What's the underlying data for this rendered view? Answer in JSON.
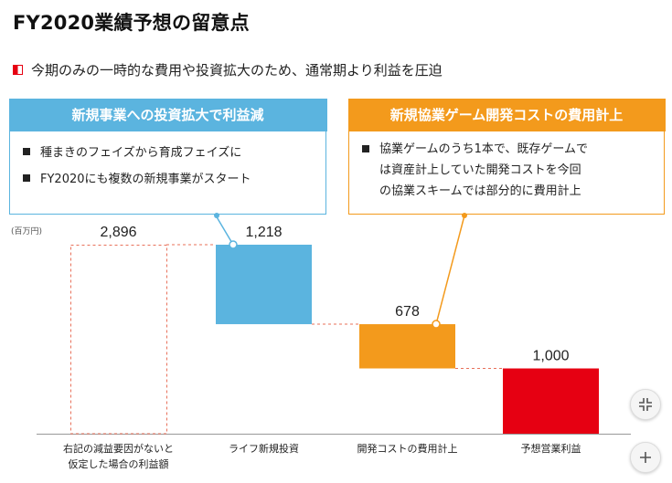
{
  "title": "FY2020業績予想の留意点",
  "subtitle": "今期のみの一時的な費用や投資拡大のため、通常期より利益を圧迫",
  "callouts": {
    "left": {
      "heading": "新規事業への投資拡大で利益減",
      "lines": [
        "種まきのフェイズから育成フェイズに",
        "FY2020にも複数の新規事業がスタート"
      ]
    },
    "right": {
      "heading": "新規協業ゲーム開発コストの費用計上",
      "line1": "協業ゲームのうち1本で、既存ゲームで",
      "line2": "は資産計上していた開発コストを今回",
      "line3": "の協業スキームでは部分的に費用計上"
    }
  },
  "chart_data": {
    "type": "waterfall",
    "unit": "(百万円)",
    "categories": [
      "右記の減益要因がないと\n仮定した場合の利益額",
      "ライフ新規投資",
      "開発コストの費用計上",
      "予想営業利益"
    ],
    "steps": [
      {
        "label": "2,896",
        "value": 2896,
        "kind": "total",
        "style": "dashed"
      },
      {
        "label": "1,218",
        "value": 1218,
        "kind": "decrease",
        "color": "#5bb4df"
      },
      {
        "label": "678",
        "value": 678,
        "kind": "decrease",
        "color": "#f39a1c"
      },
      {
        "label": "1,000",
        "value": 1000,
        "kind": "total",
        "color": "#e60012"
      }
    ],
    "ylim": [
      0,
      2896
    ],
    "grid": false,
    "connector_color": "#e8705a"
  },
  "controls": {
    "collapse_icon": "collapse-icon",
    "zoom_in_icon": "plus-icon"
  }
}
